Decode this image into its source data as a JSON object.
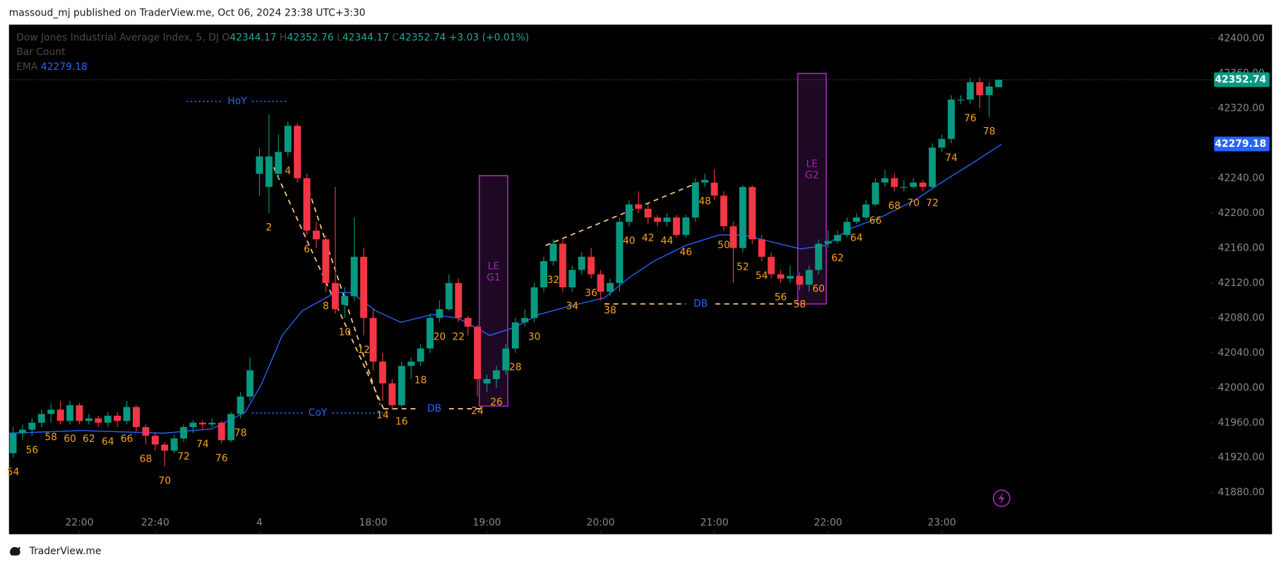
{
  "header": {
    "publisher": "massoud_mj published on TraderView.me, Oct 06, 2024 23:38 UTC+3:30"
  },
  "footer": {
    "brand": "TraderView.me"
  },
  "chart_data": {
    "type": "candlestick",
    "legend": {
      "symbol": "Dow Jones Industrial Average Index, 5, DJ",
      "o_label": "O",
      "o": "42344.17",
      "h_label": "H",
      "h": "42352.76",
      "l_label": "L",
      "l": "42344.17",
      "c_label": "C",
      "c": "42352.74",
      "change": "+3.03 (+0.01%)",
      "indicator": "Bar Count",
      "ema_label": "EMA",
      "ema": "42279.18"
    },
    "colors": {
      "up": "#089981",
      "down": "#f23645",
      "ema": "#2962ff",
      "count": "#f7a21b",
      "box": "#9c27b0"
    },
    "candles": [
      [
        41925,
        41955,
        41920,
        41948
      ],
      [
        41948,
        41958,
        41940,
        41952
      ],
      [
        41952,
        41965,
        41945,
        41960
      ],
      [
        41960,
        41975,
        41955,
        41970
      ],
      [
        41970,
        41982,
        41960,
        41975
      ],
      [
        41975,
        41985,
        41958,
        41962
      ],
      [
        41962,
        41985,
        41958,
        41980
      ],
      [
        41980,
        41983,
        41958,
        41962
      ],
      [
        41962,
        41970,
        41958,
        41965
      ],
      [
        41965,
        41968,
        41955,
        41960
      ],
      [
        41960,
        41972,
        41955,
        41968
      ],
      [
        41968,
        41972,
        41955,
        41962
      ],
      [
        41962,
        41985,
        41958,
        41978
      ],
      [
        41978,
        41980,
        41950,
        41955
      ],
      [
        41955,
        41958,
        41935,
        41945
      ],
      [
        41945,
        41948,
        41928,
        41935
      ],
      [
        41935,
        41938,
        41910,
        41928
      ],
      [
        41928,
        41946,
        41925,
        41942
      ],
      [
        41942,
        41958,
        41938,
        41955
      ],
      [
        41955,
        41963,
        41948,
        41960
      ],
      [
        41960,
        41963,
        41952,
        41958
      ],
      [
        41958,
        41965,
        41955,
        41960
      ],
      [
        41960,
        41962,
        41936,
        41940
      ],
      [
        41940,
        41972,
        41938,
        41970
      ],
      [
        41970,
        41995,
        41965,
        41990
      ],
      [
        41990,
        42035,
        41985,
        42020
      ],
      [
        42245,
        42275,
        42220,
        42265
      ],
      [
        42230,
        42313,
        42200,
        42265
      ],
      [
        42245,
        42290,
        42240,
        42270
      ],
      [
        42270,
        42305,
        42265,
        42300
      ],
      [
        42300,
        42303,
        42235,
        42240
      ],
      [
        42240,
        42245,
        42175,
        42180
      ],
      [
        42180,
        42190,
        42160,
        42170
      ],
      [
        42170,
        42175,
        42110,
        42120
      ],
      [
        42120,
        42230,
        42085,
        42090
      ],
      [
        42095,
        42115,
        42080,
        42105
      ],
      [
        42105,
        42195,
        42100,
        42150
      ],
      [
        42150,
        42160,
        42060,
        42080
      ],
      [
        42080,
        42090,
        42020,
        42030
      ],
      [
        42030,
        42040,
        41985,
        42005
      ],
      [
        42005,
        42010,
        41975,
        41980
      ],
      [
        41980,
        42030,
        41978,
        42025
      ],
      [
        42025,
        42035,
        42010,
        42030
      ],
      [
        42030,
        42050,
        42025,
        42045
      ],
      [
        42045,
        42085,
        42040,
        42080
      ],
      [
        42080,
        42100,
        42075,
        42090
      ],
      [
        42090,
        42130,
        42088,
        42120
      ],
      [
        42120,
        42125,
        42075,
        42080
      ],
      [
        42080,
        42082,
        42060,
        42070
      ],
      [
        42070,
        42072,
        41990,
        42010
      ],
      [
        42005,
        42015,
        41995,
        42010
      ],
      [
        42010,
        42025,
        42000,
        42020
      ],
      [
        42020,
        42050,
        42015,
        42045
      ],
      [
        42045,
        42080,
        42040,
        42075
      ],
      [
        42075,
        42090,
        42070,
        42080
      ],
      [
        42080,
        42120,
        42075,
        42115
      ],
      [
        42115,
        42150,
        42110,
        42145
      ],
      [
        42145,
        42170,
        42140,
        42165
      ],
      [
        42165,
        42170,
        42110,
        42115
      ],
      [
        42115,
        42140,
        42110,
        42135
      ],
      [
        42135,
        42155,
        42130,
        42150
      ],
      [
        42150,
        42160,
        42125,
        42130
      ],
      [
        42130,
        42135,
        42100,
        42110
      ],
      [
        42110,
        42125,
        42105,
        42120
      ],
      [
        42120,
        42195,
        42110,
        42190
      ],
      [
        42190,
        42215,
        42185,
        42210
      ],
      [
        42210,
        42225,
        42200,
        42205
      ],
      [
        42205,
        42210,
        42188,
        42195
      ],
      [
        42195,
        42198,
        42185,
        42190
      ],
      [
        42190,
        42200,
        42185,
        42195
      ],
      [
        42195,
        42198,
        42172,
        42175
      ],
      [
        42175,
        42198,
        42172,
        42195
      ],
      [
        42195,
        42240,
        42190,
        42235
      ],
      [
        42235,
        42245,
        42230,
        42238
      ],
      [
        42235,
        42250,
        42215,
        42220
      ],
      [
        42220,
        42225,
        42180,
        42185
      ],
      [
        42185,
        42190,
        42120,
        42160
      ],
      [
        42160,
        42232,
        42155,
        42230
      ],
      [
        42230,
        42232,
        42165,
        42170
      ],
      [
        42170,
        42175,
        42145,
        42150
      ],
      [
        42150,
        42155,
        42125,
        42130
      ],
      [
        42130,
        42135,
        42120,
        42125
      ],
      [
        42125,
        42140,
        42120,
        42128
      ],
      [
        42128,
        42132,
        42112,
        42118
      ],
      [
        42118,
        42140,
        42110,
        42135
      ],
      [
        42135,
        42170,
        42130,
        42165
      ],
      [
        42165,
        42180,
        42160,
        42168
      ],
      [
        42168,
        42180,
        42165,
        42175
      ],
      [
        42175,
        42195,
        42172,
        42190
      ],
      [
        42190,
        42200,
        42188,
        42195
      ],
      [
        42195,
        42215,
        42192,
        42210
      ],
      [
        42210,
        42240,
        42208,
        42235
      ],
      [
        42235,
        42250,
        42230,
        42240
      ],
      [
        42240,
        42245,
        42225,
        42230
      ],
      [
        42230,
        42238,
        42225,
        42230
      ],
      [
        42230,
        42240,
        42228,
        42235
      ],
      [
        42235,
        42238,
        42225,
        42230
      ],
      [
        42230,
        42280,
        42228,
        42275
      ],
      [
        42275,
        42290,
        42270,
        42285
      ],
      [
        42285,
        42335,
        42280,
        42330
      ],
      [
        42330,
        42335,
        42325,
        42330
      ],
      [
        42330,
        42355,
        42325,
        42350
      ],
      [
        42350,
        42355,
        42320,
        42335
      ],
      [
        42335,
        42350,
        42310,
        42345
      ],
      [
        42344.17,
        42352.76,
        42344.17,
        42352.74
      ]
    ],
    "ema": {
      "name": "EMA",
      "x": [
        -0.4,
        7.2,
        15.9,
        21,
        24.5,
        26.2,
        28.4,
        30.5,
        34,
        35.7,
        38.3,
        40.9,
        44.3,
        46.9,
        50.3,
        52.9,
        55.5,
        58.9,
        62.4,
        65,
        67.6,
        71,
        74.5,
        77.1,
        79.7,
        83.1,
        85.7,
        88.3,
        91.7,
        95.2,
        97.8,
        101.2,
        104.3
      ],
      "values": [
        41948,
        41951,
        41948,
        41953,
        41972,
        42004,
        42060,
        42088,
        42109,
        42109,
        42088,
        42075,
        42084,
        42080,
        42060,
        42069,
        42084,
        42094,
        42103,
        42126,
        42145,
        42163,
        42175,
        42175,
        42168,
        42159,
        42163,
        42182,
        42196,
        42215,
        42234,
        42257,
        42279
      ]
    },
    "count_labels": [
      {
        "text": "54",
        "x": 0
      },
      {
        "text": "56",
        "x": 2
      },
      {
        "text": "58",
        "x": 4
      },
      {
        "text": "60",
        "x": 6
      },
      {
        "text": "62",
        "x": 8
      },
      {
        "text": "64",
        "x": 10
      },
      {
        "text": "66",
        "x": 12
      },
      {
        "text": "68",
        "x": 14
      },
      {
        "text": "70",
        "x": 16
      },
      {
        "text": "72",
        "x": 18
      },
      {
        "text": "74",
        "x": 20
      },
      {
        "text": "76",
        "x": 22
      },
      {
        "text": "78",
        "x": 24
      },
      {
        "text": "2",
        "x": 27
      },
      {
        "text": "4",
        "x": 29
      },
      {
        "text": "6",
        "x": 31
      },
      {
        "text": "8",
        "x": 33
      },
      {
        "text": "10",
        "x": 35
      },
      {
        "text": "12",
        "x": 37
      },
      {
        "text": "14",
        "x": 39
      },
      {
        "text": "16",
        "x": 41
      },
      {
        "text": "18",
        "x": 43
      },
      {
        "text": "20",
        "x": 45
      },
      {
        "text": "22",
        "x": 47
      },
      {
        "text": "24",
        "x": 49
      },
      {
        "text": "26",
        "x": 51
      },
      {
        "text": "28",
        "x": 53
      },
      {
        "text": "30",
        "x": 55
      },
      {
        "text": "32",
        "x": 57
      },
      {
        "text": "34",
        "x": 59
      },
      {
        "text": "36",
        "x": 61
      },
      {
        "text": "38",
        "x": 63
      },
      {
        "text": "40",
        "x": 65
      },
      {
        "text": "42",
        "x": 67
      },
      {
        "text": "44",
        "x": 69
      },
      {
        "text": "46",
        "x": 71
      },
      {
        "text": "48",
        "x": 73
      },
      {
        "text": "50",
        "x": 75
      },
      {
        "text": "52",
        "x": 77
      },
      {
        "text": "54",
        "x": 79
      },
      {
        "text": "56",
        "x": 81
      },
      {
        "text": "58",
        "x": 83
      },
      {
        "text": "60",
        "x": 85
      },
      {
        "text": "62",
        "x": 87
      },
      {
        "text": "64",
        "x": 89
      },
      {
        "text": "66",
        "x": 91
      },
      {
        "text": "68",
        "x": 93
      },
      {
        "text": "70",
        "x": 95
      },
      {
        "text": "72",
        "x": 97
      },
      {
        "text": "74",
        "x": 99
      },
      {
        "text": "76",
        "x": 101
      },
      {
        "text": "78",
        "x": 103
      }
    ],
    "levels": [
      {
        "label": "HoY",
        "x": [
          18.3,
          29
        ],
        "y": 42328,
        "style": "dotted",
        "color": "#2962ff"
      },
      {
        "label": "CoY",
        "x": [
          25.2,
          39.1
        ],
        "y": 41971,
        "style": "dotted",
        "color": "#2962ff"
      },
      {
        "label": "DB",
        "x": [
          39.1,
          49.8
        ],
        "y": 41976,
        "style": "dashed",
        "color": "#ffcc80"
      },
      {
        "label": "DB",
        "x": [
          62.4,
          82.7
        ],
        "y": 42096,
        "style": "dashed",
        "color": "#ffcc80"
      }
    ],
    "trendlines": [
      {
        "x": [
          27.1,
          39.1
        ],
        "y": [
          42262,
          41976
        ]
      },
      {
        "x": [
          30.9,
          38.7
        ],
        "y": [
          42236,
          41981
        ]
      },
      {
        "x": [
          56.2,
          72.3
        ],
        "y": [
          42163,
          42235
        ]
      }
    ],
    "boxes": [
      {
        "label": [
          "LE",
          "G1"
        ],
        "x": [
          49.2,
          52.2
        ],
        "y": [
          41979,
          42243
        ]
      },
      {
        "label": [
          "LE",
          "G2"
        ],
        "x": [
          82.8,
          85.8
        ],
        "y": [
          42096,
          42360
        ]
      }
    ],
    "xticks": [
      {
        "value": 7,
        "label": "22:00"
      },
      {
        "value": 15,
        "label": "22:40"
      },
      {
        "value": 26,
        "label": "4"
      },
      {
        "value": 38,
        "label": "18:00"
      },
      {
        "value": 50,
        "label": "19:00"
      },
      {
        "value": 62,
        "label": "20:00"
      },
      {
        "value": 74,
        "label": "21:00"
      },
      {
        "value": 86,
        "label": "22:00"
      },
      {
        "value": 98,
        "label": "23:00"
      }
    ],
    "ylim": [
      41880,
      42400
    ],
    "yticks": [
      {
        "value": 41880,
        "label": "41880.00"
      },
      {
        "value": 41920,
        "label": "41920.00"
      },
      {
        "value": 41960,
        "label": "41960.00"
      },
      {
        "value": 42000,
        "label": "42000.00"
      },
      {
        "value": 42040,
        "label": "42040.00"
      },
      {
        "value": 42080,
        "label": "42080.00"
      },
      {
        "value": 42120,
        "label": "42120.00"
      },
      {
        "value": 42160,
        "label": "42160.00"
      },
      {
        "value": 42200,
        "label": "42200.00"
      },
      {
        "value": 42240,
        "label": "42240.00"
      },
      {
        "value": 42280,
        "label": "42280.00"
      },
      {
        "value": 42320,
        "label": "42320.00"
      },
      {
        "value": 42360,
        "label": "42360.00"
      },
      {
        "value": 42400,
        "label": "42400.00"
      }
    ],
    "badges": [
      {
        "value": 42352.74,
        "label": "42352.74",
        "color": "#089981"
      },
      {
        "value": 42279.18,
        "label": "42279.18",
        "color": "#2962ff"
      }
    ]
  }
}
